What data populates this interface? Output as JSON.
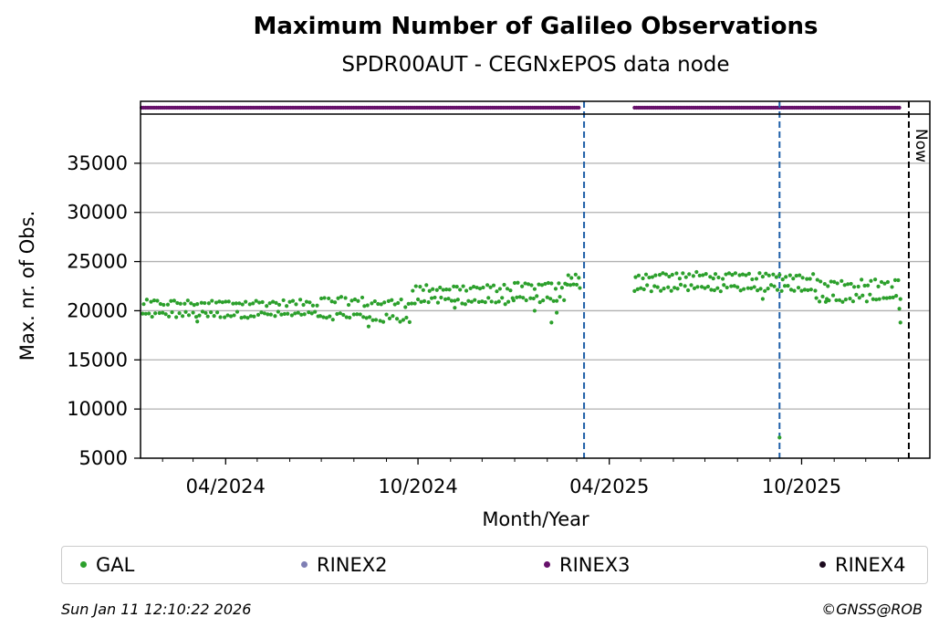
{
  "chart_data": {
    "type": "scatter",
    "title": "Maximum Number of Galileo Observations",
    "subtitle": "SPDR00AUT - CEGNxEPOS data node",
    "xlabel": "Month/Year",
    "ylabel": "Max. nr. of Obs.",
    "xlim": [
      "2024-01-11",
      "2026-01-31"
    ],
    "ylim": [
      5000,
      40000
    ],
    "yticks": [
      5000,
      10000,
      15000,
      20000,
      25000,
      30000,
      35000
    ],
    "ytick_labels": [
      "5000",
      "10000",
      "15000",
      "20000",
      "25000",
      "30000",
      "35000"
    ],
    "xticks": [
      "2024-04-01",
      "2024-10-01",
      "2025-04-01",
      "2025-10-01"
    ],
    "xtick_labels": [
      "04/2024",
      "10/2024",
      "04/2025",
      "10/2025"
    ],
    "grid": "y-major",
    "vlines": [
      {
        "x": "2025-03-08",
        "style": "dashed",
        "color": "#1f5fa8"
      },
      {
        "x": "2025-09-10",
        "style": "dashed",
        "color": "#1f5fa8"
      },
      {
        "x": "2026-01-11",
        "style": "dashed",
        "color": "#000000",
        "label": "Now"
      }
    ],
    "series": [
      {
        "name": "GAL",
        "color": "#2ca02c",
        "segments": [
          {
            "from": "2024-01-13",
            "to": "2024-03-15",
            "values": [
              19600,
              20800
            ],
            "range": [
              19400,
              20800
            ]
          },
          {
            "from": "2024-03-15",
            "to": "2024-06-30",
            "values": [
              19600,
              20800
            ],
            "range": [
              19500,
              20800
            ]
          },
          {
            "from": "2024-06-30",
            "to": "2024-08-10",
            "values": [
              19500,
              21000
            ],
            "range": [
              19300,
              21000
            ]
          },
          {
            "from": "2024-08-10",
            "to": "2024-09-25",
            "values": [
              19200,
              20800
            ],
            "range": [
              18500,
              20900
            ]
          },
          {
            "from": "2024-09-25",
            "to": "2024-12-31",
            "values": [
              21000,
              22300
            ],
            "range": [
              20900,
              22400
            ]
          },
          {
            "from": "2024-12-31",
            "to": "2025-02-20",
            "values": [
              21200,
              22500
            ],
            "range": [
              21000,
              22600
            ]
          },
          {
            "from": "2025-02-20",
            "to": "2025-03-05",
            "values": [
              22500,
              23500
            ],
            "range": [
              22000,
              23500
            ]
          },
          {
            "from": "2025-04-25",
            "to": "2025-07-10",
            "values": [
              22300,
              23600
            ],
            "range": [
              22000,
              23700
            ]
          },
          {
            "from": "2025-07-10",
            "to": "2025-10-15",
            "values": [
              22300,
              23500
            ],
            "range": [
              21500,
              23600
            ]
          },
          {
            "from": "2025-10-15",
            "to": "2026-01-03",
            "values": [
              21300,
              22800
            ],
            "range": [
              20800,
              22900
            ]
          }
        ],
        "outliers": [
          {
            "x": "2024-03-05",
            "y": 18900
          },
          {
            "x": "2024-08-15",
            "y": 18400
          },
          {
            "x": "2024-11-05",
            "y": 20300
          },
          {
            "x": "2025-01-20",
            "y": 20000
          },
          {
            "x": "2025-02-05",
            "y": 18800
          },
          {
            "x": "2025-02-10",
            "y": 19800
          },
          {
            "x": "2025-08-25",
            "y": 21200
          },
          {
            "x": "2025-09-10",
            "y": 7100
          },
          {
            "x": "2025-10-25",
            "y": 21200
          },
          {
            "x": "2026-01-02",
            "y": 20200
          },
          {
            "x": "2026-01-03",
            "y": 18800
          }
        ]
      },
      {
        "name": "RINEX2",
        "color": "#7f7fb4"
      },
      {
        "name": "RINEX3",
        "color": "#66106a",
        "strip_ranges": [
          [
            "2024-01-12",
            "2025-03-04"
          ],
          [
            "2025-04-25",
            "2026-01-03"
          ]
        ]
      },
      {
        "name": "RINEX4",
        "color": "#1b0a1e"
      }
    ]
  },
  "labels": {
    "now": "Now"
  },
  "legend": [
    {
      "label": "GAL",
      "color": "#2ca02c"
    },
    {
      "label": "RINEX2",
      "color": "#7f7fb4"
    },
    {
      "label": "RINEX3",
      "color": "#66106a"
    },
    {
      "label": "RINEX4",
      "color": "#1b0a1e"
    }
  ],
  "footer": {
    "timestamp": "Sun Jan 11 12:10:22 2026",
    "copyright": "©GNSS@ROB"
  }
}
